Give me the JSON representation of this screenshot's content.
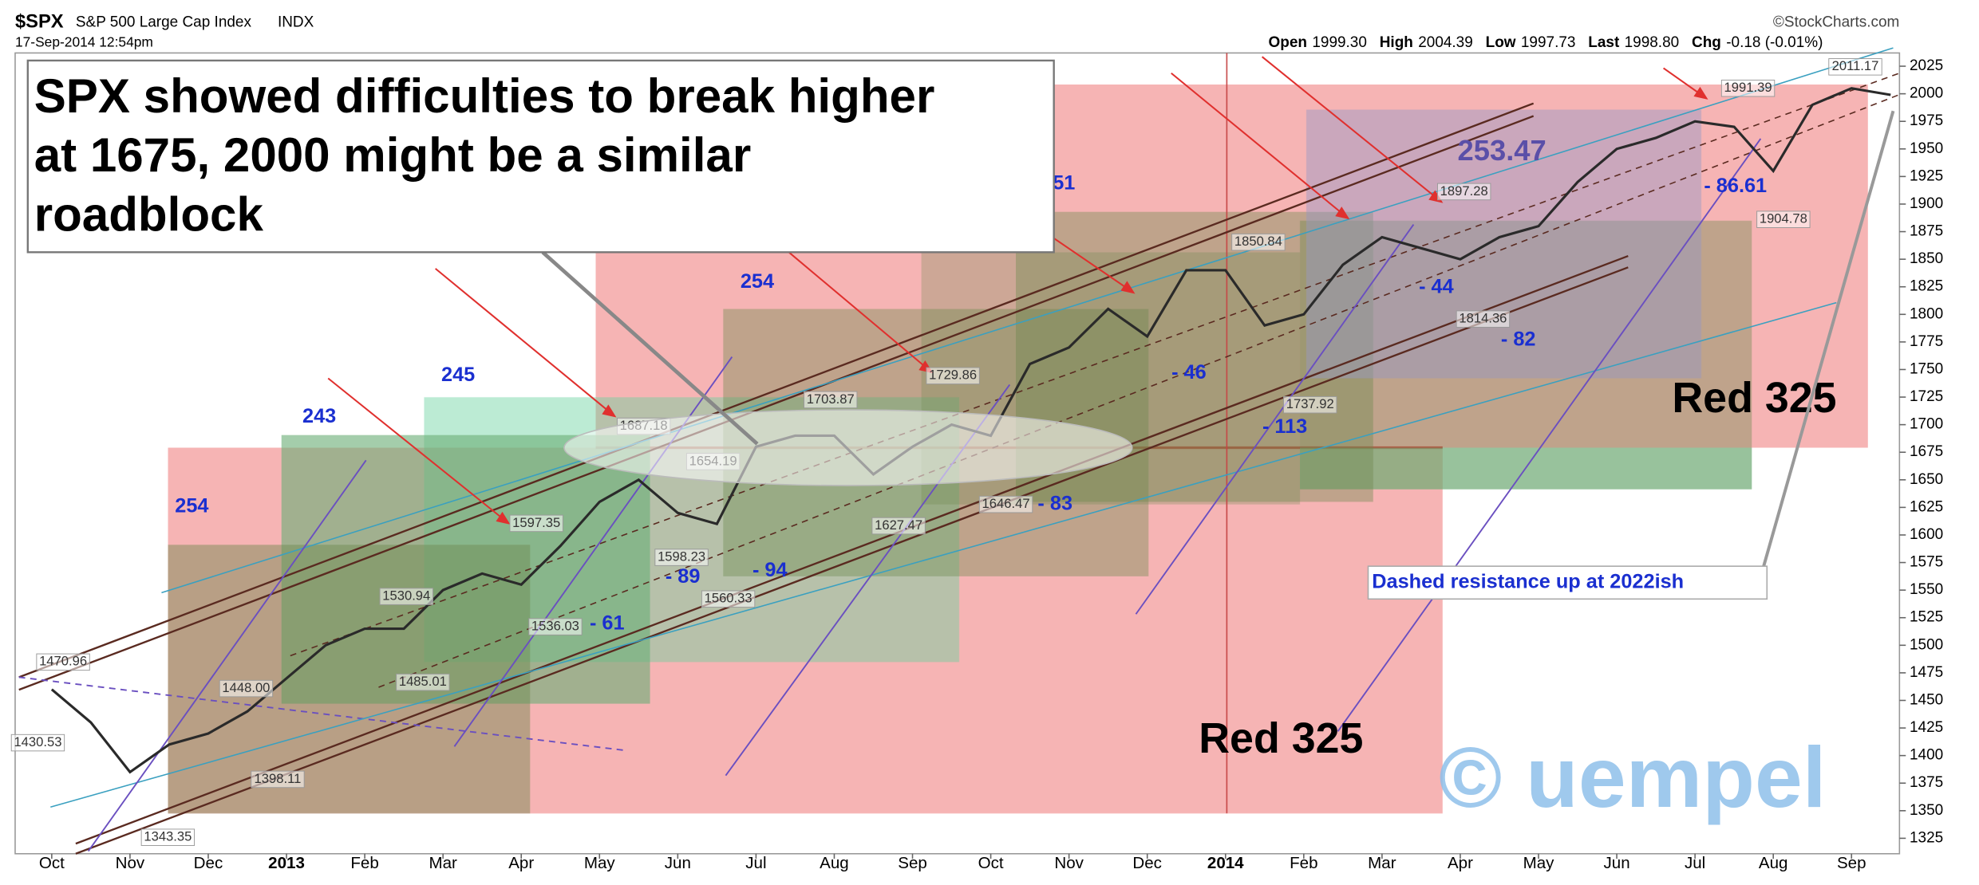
{
  "chart_data": {
    "type": "line",
    "symbol": "$SPX",
    "name": "S&P 500 Large Cap Index",
    "exchange": "INDX",
    "date": "17-Sep-2014 12:54pm",
    "source": "©StockCharts.com",
    "quote": [
      {
        "label": "Open",
        "value": "1999.30"
      },
      {
        "label": "High",
        "value": "2004.39"
      },
      {
        "label": "Low",
        "value": "1997.73"
      },
      {
        "label": "Last",
        "value": "1998.80"
      },
      {
        "label": "Chg",
        "value": "-0.18 (-0.01%)"
      }
    ],
    "callout": [
      "SPX showed difficulties to break higher",
      "at 1675, 2000 might be a similar",
      "roadblock"
    ],
    "note": "Dashed resistance up at 2022ish",
    "watermark": "© uempel",
    "big_labels": [
      "Red 325",
      "Red 325"
    ],
    "move_labels": [
      "254",
      "243",
      "245",
      "254",
      "- 89",
      "- 94",
      "- 61",
      "- 83",
      "51",
      "- 46",
      "- 113",
      "- 44",
      "- 82",
      "- 86.61",
      "253.47"
    ],
    "price_labels": [
      "1470.96",
      "1430.53",
      "1448.00",
      "1343.35",
      "1398.11",
      "1485.01",
      "1530.94",
      "1536.03",
      "1597.35",
      "1598.23",
      "1560.33",
      "1654.19",
      "1687.18",
      "1703.87",
      "1627.47",
      "1729.86",
      "1646.47",
      "1850.84",
      "1737.92",
      "1897.28",
      "1814.36",
      "1991.39",
      "1904.78",
      "2011.17"
    ],
    "categories": [
      "Oct",
      null,
      "Nov",
      null,
      "Dec",
      null,
      "2013",
      null,
      "Feb",
      null,
      "Mar",
      null,
      "Apr",
      null,
      "May",
      null,
      "Jun",
      null,
      "Jul",
      null,
      "Aug",
      null,
      "Sep",
      null,
      "Oct",
      null,
      "Nov",
      null,
      "Dec",
      null,
      "2014",
      null,
      "Feb",
      null,
      "Mar",
      null,
      "Apr",
      null,
      "May",
      null,
      "Jun",
      null,
      "Jul",
      null,
      "Aug",
      null,
      "Sep",
      null
    ],
    "series": [
      {
        "color": "#2a2a2a",
        "values": [
          1460,
          1430,
          1385,
          1410,
          1420,
          1440,
          1470,
          1500,
          1515,
          1515,
          1550,
          1565,
          1555,
          1590,
          1630,
          1650,
          1620,
          1610,
          1680,
          1690,
          1690,
          1655,
          1680,
          1700,
          1690,
          1755,
          1770,
          1805,
          1780,
          1840,
          1840,
          1790,
          1800,
          1845,
          1870,
          1860,
          1850,
          1870,
          1880,
          1920,
          1950,
          1960,
          1975,
          1970,
          1930,
          1990,
          2005,
          1999
        ]
      }
    ],
    "ylim": [
      1311,
      2037
    ],
    "yticks": [
      1325,
      1350,
      1375,
      1400,
      1425,
      1450,
      1475,
      1500,
      1525,
      1550,
      1575,
      1600,
      1625,
      1650,
      1675,
      1700,
      1725,
      1750,
      1775,
      1800,
      1825,
      1850,
      1875,
      1900,
      1925,
      1950,
      1975,
      2000,
      2025
    ],
    "y_axis_side": "right"
  }
}
